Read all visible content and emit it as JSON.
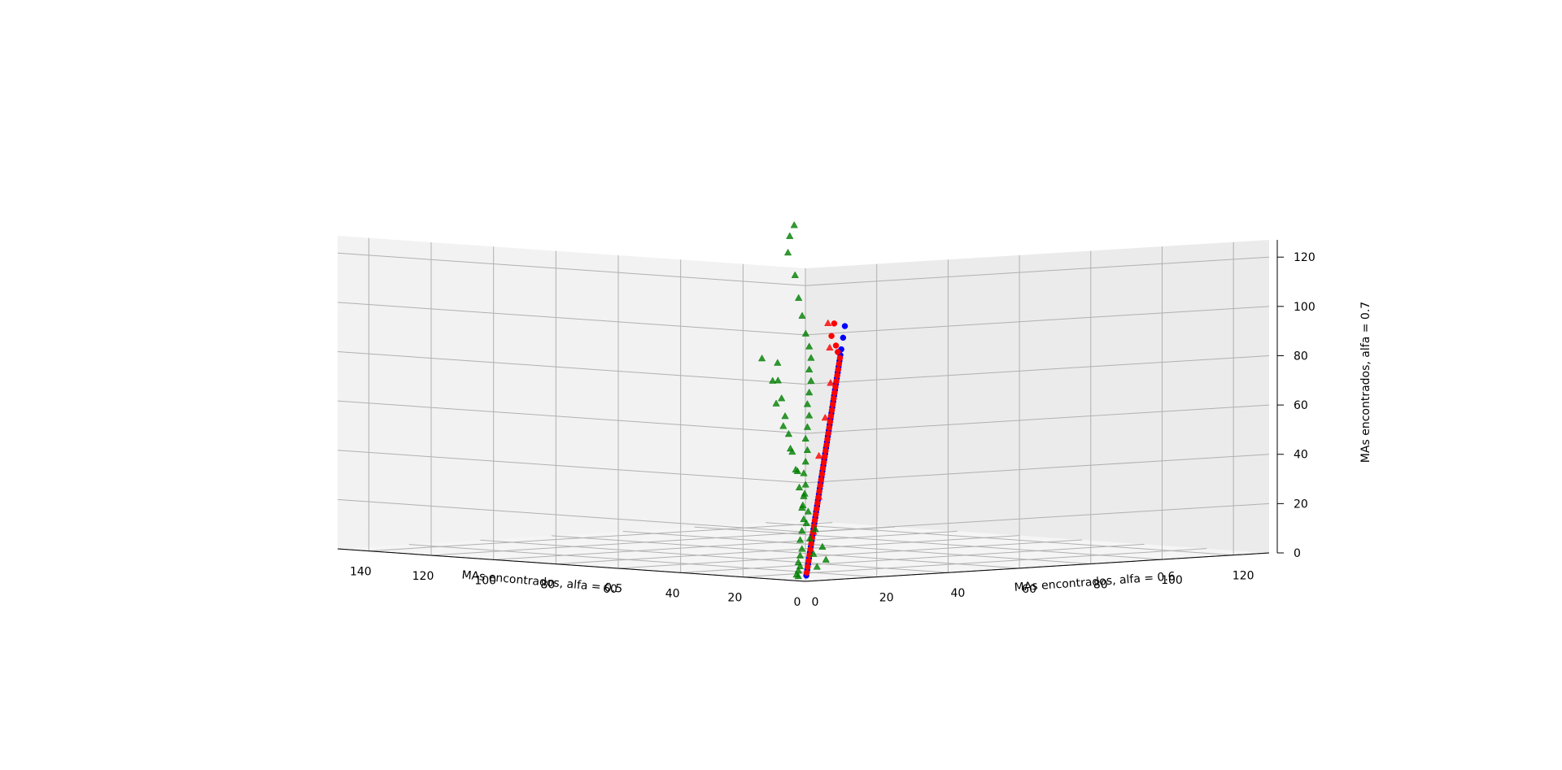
{
  "chart_data": {
    "type": "scatter",
    "projection": "3d",
    "grid": true,
    "title": "",
    "xlabel": "MAs encontrados, alfa = 0.5",
    "ylabel": "MAs encontrados, alfa = 0.6",
    "zlabel": "MAs encontrados, alfa = 0.7",
    "x_ticks": [
      "0",
      "20",
      "40",
      "60",
      "80",
      "100",
      "120",
      "140"
    ],
    "y_ticks": [
      "0",
      "20",
      "40",
      "60",
      "80",
      "100",
      "120"
    ],
    "z_ticks": [
      "0",
      "20",
      "40",
      "60",
      "80",
      "100",
      "120"
    ],
    "xlim": [
      0,
      150
    ],
    "ylim": [
      0,
      130
    ],
    "zlim": [
      0,
      127
    ],
    "series": [
      {
        "marker": "circle",
        "color": "#0000ff",
        "x": [
          2,
          4,
          6,
          8,
          10,
          12,
          14,
          16,
          18,
          20,
          22,
          24,
          26,
          28,
          30,
          32,
          34,
          36,
          38,
          40,
          42,
          44,
          46,
          48,
          50,
          52,
          54,
          56,
          58,
          60,
          62,
          64,
          66,
          68,
          70,
          72,
          74,
          76,
          78,
          80,
          84,
          88
        ],
        "y": [
          2,
          4,
          6,
          8,
          10,
          12,
          14,
          16,
          18,
          20,
          22,
          24,
          26,
          28,
          30,
          32,
          34,
          36,
          38,
          40,
          42,
          44,
          46,
          48,
          50,
          52,
          54,
          56,
          58,
          60,
          62,
          64,
          66,
          68,
          70,
          72,
          74,
          76,
          78,
          80,
          84,
          88
        ],
        "z": [
          2,
          4,
          6,
          8,
          10,
          12,
          14,
          16,
          18,
          20,
          22,
          24,
          26,
          28,
          30,
          32,
          34,
          36,
          38,
          40,
          42,
          44,
          46,
          48,
          50,
          52,
          54,
          56,
          58,
          60,
          62,
          64,
          66,
          68,
          70,
          72,
          74,
          76,
          78,
          80,
          84,
          88
        ]
      },
      {
        "marker": "circle",
        "color": "#ff0000",
        "x": [
          3,
          5,
          7,
          9,
          11,
          13,
          15,
          17,
          19,
          21,
          23,
          25,
          27,
          29,
          31,
          33,
          35,
          37,
          39,
          41,
          43,
          45,
          47,
          49,
          51,
          53,
          55,
          57,
          59,
          61,
          63,
          65,
          67,
          69,
          71,
          73,
          75,
          77,
          80,
          84,
          90,
          96
        ],
        "y": [
          3,
          5,
          7,
          9,
          11,
          13,
          15,
          17,
          19,
          21,
          23,
          25,
          27,
          29,
          31,
          33,
          35,
          37,
          39,
          41,
          43,
          45,
          47,
          49,
          51,
          53,
          55,
          57,
          59,
          61,
          63,
          65,
          67,
          69,
          71,
          73,
          75,
          77,
          79,
          82,
          86,
          92
        ],
        "z": [
          3,
          5,
          7,
          9,
          11,
          13,
          15,
          17,
          19,
          21,
          23,
          25,
          27,
          29,
          31,
          33,
          35,
          37,
          39,
          41,
          43,
          45,
          47,
          49,
          51,
          53,
          55,
          57,
          59,
          61,
          63,
          65,
          67,
          69,
          71,
          73,
          75,
          77,
          79,
          81,
          84,
          88
        ]
      },
      {
        "marker": "triangle",
        "color": "#ff0000",
        "x": [
          18,
          30,
          46,
          60,
          72,
          86,
          98
        ],
        "y": [
          18,
          30,
          44,
          58,
          70,
          82,
          92
        ],
        "z": [
          17,
          29,
          43,
          56,
          68,
          80,
          88
        ]
      },
      {
        "marker": "triangle",
        "color": "#008000",
        "x": [
          150,
          148,
          144,
          136,
          128,
          120,
          112,
          104,
          100,
          96,
          92,
          88,
          84,
          80,
          76,
          72,
          68,
          64,
          60,
          56,
          52,
          48,
          44,
          40,
          36,
          32,
          28,
          24,
          20,
          16,
          12,
          8,
          105,
          98,
          90,
          82,
          74,
          66,
          58,
          50,
          42,
          34,
          26,
          18,
          10,
          94,
          86,
          78,
          70,
          62,
          54,
          46,
          38,
          30,
          22,
          14
        ],
        "y": [
          128,
          125,
          121,
          116,
          110,
          104,
          98,
          92,
          89,
          85,
          82,
          78,
          74,
          71,
          67,
          63,
          60,
          56,
          52,
          49,
          45,
          41,
          38,
          34,
          30,
          27,
          23,
          19,
          16,
          12,
          8,
          5,
          84,
          78,
          72,
          66,
          60,
          54,
          48,
          42,
          36,
          30,
          24,
          18,
          12,
          70,
          66,
          60,
          55,
          50,
          45,
          40,
          34,
          29,
          24,
          18
        ],
        "z": [
          120,
          116,
          110,
          102,
          94,
          88,
          82,
          78,
          74,
          70,
          66,
          62,
          58,
          54,
          50,
          46,
          42,
          38,
          34,
          30,
          26,
          22,
          18,
          14,
          11,
          8,
          6,
          4,
          3,
          2,
          1,
          1,
          72,
          66,
          60,
          54,
          48,
          42,
          36,
          30,
          24,
          18,
          13,
          8,
          4,
          76,
          68,
          60,
          52,
          44,
          36,
          28,
          22,
          16,
          10,
          6
        ]
      }
    ]
  }
}
